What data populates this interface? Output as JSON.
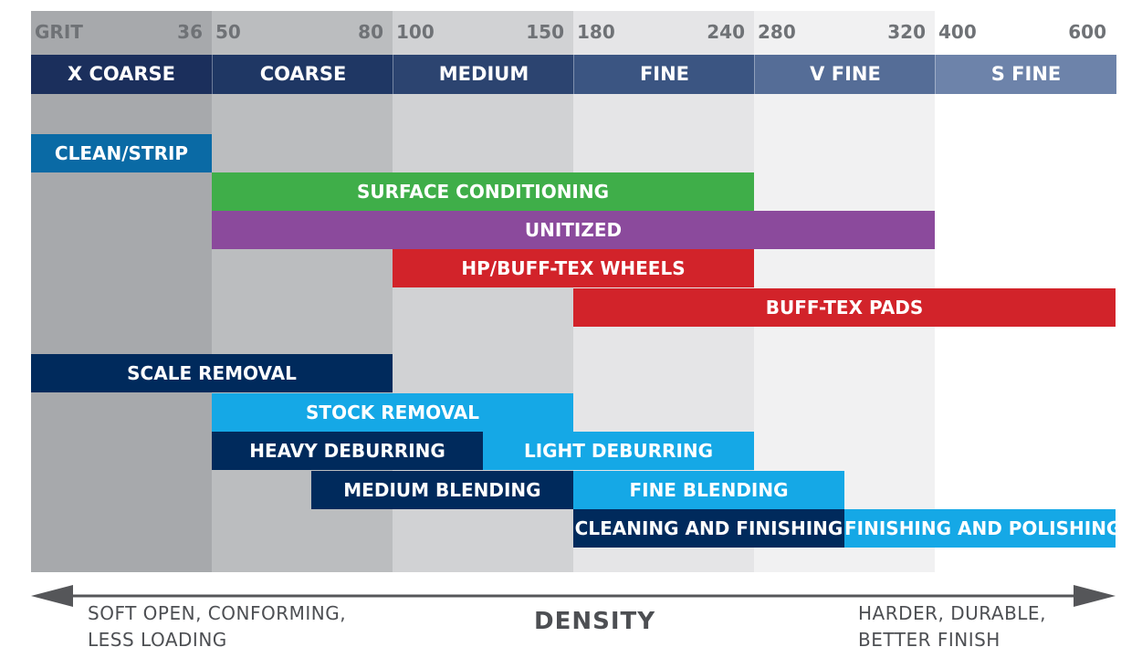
{
  "chart_data": {
    "type": "range-bar",
    "x_scale": "grit",
    "columns": [
      {
        "name": "X COARSE",
        "grit_start": "GRIT",
        "grit_end": "36",
        "bg": "#a7a9ac",
        "header": "#1b2f5c"
      },
      {
        "name": "COARSE",
        "grit_start": "50",
        "grit_end": "80",
        "bg": "#bbbdbf",
        "header": "#1f3764"
      },
      {
        "name": "MEDIUM",
        "grit_start": "100",
        "grit_end": "150",
        "bg": "#d1d2d4",
        "header": "#2c4470"
      },
      {
        "name": "FINE",
        "grit_start": "180",
        "grit_end": "240",
        "bg": "#e5e5e7",
        "header": "#3b5582"
      },
      {
        "name": "V FINE",
        "grit_start": "280",
        "grit_end": "320",
        "bg": "#f1f1f2",
        "header": "#556d97"
      },
      {
        "name": "S FINE",
        "grit_start": "400",
        "grit_end": "600",
        "bg": "#ffffff",
        "header": "#6d83aa"
      }
    ],
    "bars": [
      {
        "label": "CLEAN/STRIP",
        "start": 0,
        "end": 1,
        "row": 0,
        "color": "#0a6aa5"
      },
      {
        "label": "SURFACE CONDITIONING",
        "start": 1,
        "end": 4,
        "row": 1,
        "color": "#3fae49"
      },
      {
        "label": "UNITIZED",
        "start": 1,
        "end": 5,
        "row": 2,
        "color": "#8b4a9c"
      },
      {
        "label": "HP/BUFF-TEX WHEELS",
        "start": 2,
        "end": 4,
        "row": 3,
        "color": "#d2232a"
      },
      {
        "label": "BUFF-TEX PADS",
        "start": 3,
        "end": 6,
        "row": 4,
        "color": "#d2232a"
      },
      {
        "label": "SCALE REMOVAL",
        "start": 0,
        "end": 2,
        "row": 5,
        "color": "#002a5c"
      },
      {
        "label": "STOCK REMOVAL",
        "start": 1,
        "end": 3,
        "row": 6,
        "color": "#15a8e6"
      },
      {
        "label": "HEAVY DEBURRING",
        "start": 1,
        "end": 2.5,
        "row": 7,
        "color": "#002a5c"
      },
      {
        "label": "LIGHT DEBURRING",
        "start": 2.5,
        "end": 4,
        "row": 7,
        "color": "#15a8e6"
      },
      {
        "label": "MEDIUM BLENDING",
        "start": 1.55,
        "end": 3,
        "row": 8,
        "color": "#002a5c"
      },
      {
        "label": "FINE BLENDING",
        "start": 3,
        "end": 4.5,
        "row": 8,
        "color": "#15a8e6"
      },
      {
        "label": "CLEANING AND FINISHING",
        "start": 3,
        "end": 4.5,
        "row": 9,
        "color": "#002a5c"
      },
      {
        "label": "FINISHING AND POLISHING",
        "start": 4.5,
        "end": 6,
        "row": 9,
        "color": "#15a8e6"
      }
    ],
    "axis": {
      "title": "DENSITY",
      "left_note": [
        "SOFT OPEN, CONFORMING,",
        "LESS LOADING"
      ],
      "right_note": [
        "HARDER, DURABLE,",
        "BETTER FINISH"
      ],
      "arrow_color": "#555659"
    }
  }
}
